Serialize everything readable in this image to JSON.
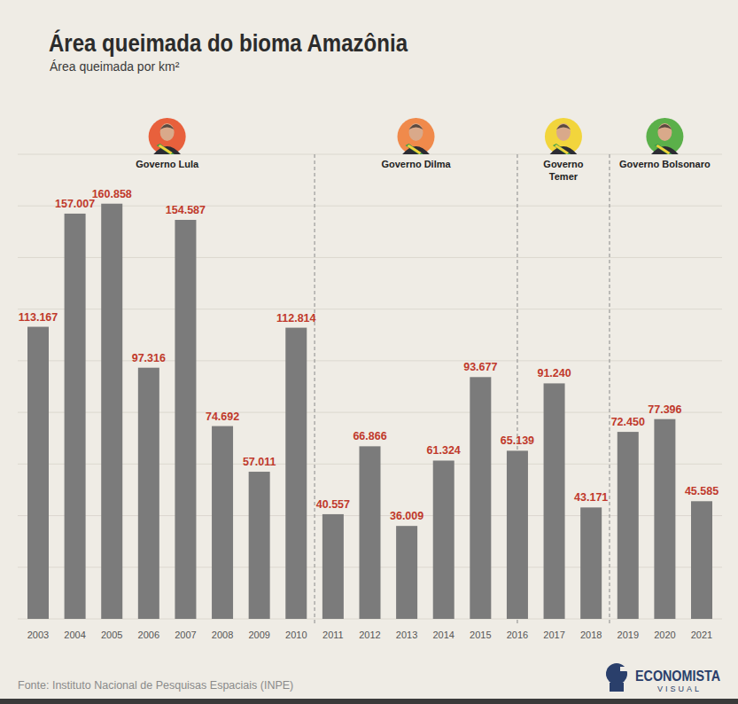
{
  "chart_data": {
    "type": "bar",
    "title": "Área queimada do bioma Amazônia",
    "subtitle": "Área queimada por km²",
    "categories": [
      "2003",
      "2004",
      "2005",
      "2006",
      "2007",
      "2008",
      "2009",
      "2010",
      "2011",
      "2012",
      "2013",
      "2014",
      "2015",
      "2016",
      "2017",
      "2018",
      "2019",
      "2020",
      "2021"
    ],
    "values": [
      113167,
      157007,
      160858,
      97316,
      154587,
      74692,
      57011,
      112814,
      40557,
      66866,
      36009,
      61324,
      93677,
      65139,
      91240,
      43171,
      72450,
      77396,
      45585
    ],
    "value_labels": [
      "113.167",
      "157.007",
      "160.858",
      "97.316",
      "154.587",
      "74.692",
      "57.011",
      "112.814",
      "40.557",
      "66.866",
      "36.009",
      "61.324",
      "93.677",
      "65.139",
      "91.240",
      "43.171",
      "72.450",
      "77.396",
      "45.585"
    ],
    "color": "#7b7b7b",
    "ylim": [
      0,
      180000
    ],
    "yticks": [
      0,
      20000,
      40000,
      60000,
      80000,
      100000,
      120000,
      140000,
      160000,
      180000
    ],
    "grid": true,
    "tick_labels": "x",
    "data_labels": true,
    "periods": [
      {
        "label": "Governo Lula",
        "start": 2002.5,
        "end": 2010.5,
        "color": "#e8603c"
      },
      {
        "label": "Governo Dilma",
        "start": 2010.5,
        "end": 2016,
        "color": "#f08a4b"
      },
      {
        "label": "Governo\nTemer",
        "start": 2016,
        "end": 2018.5,
        "color": "#f2d53c"
      },
      {
        "label": "Governo Bolsonaro",
        "start": 2018.5,
        "end": 2021.5,
        "color": "#5bb04a"
      }
    ],
    "source": "Fonte: Instituto Nacional de Pesquisas Espaciais (INPE)",
    "brand": [
      "ECONOMISTA",
      "VISUAL"
    ]
  }
}
